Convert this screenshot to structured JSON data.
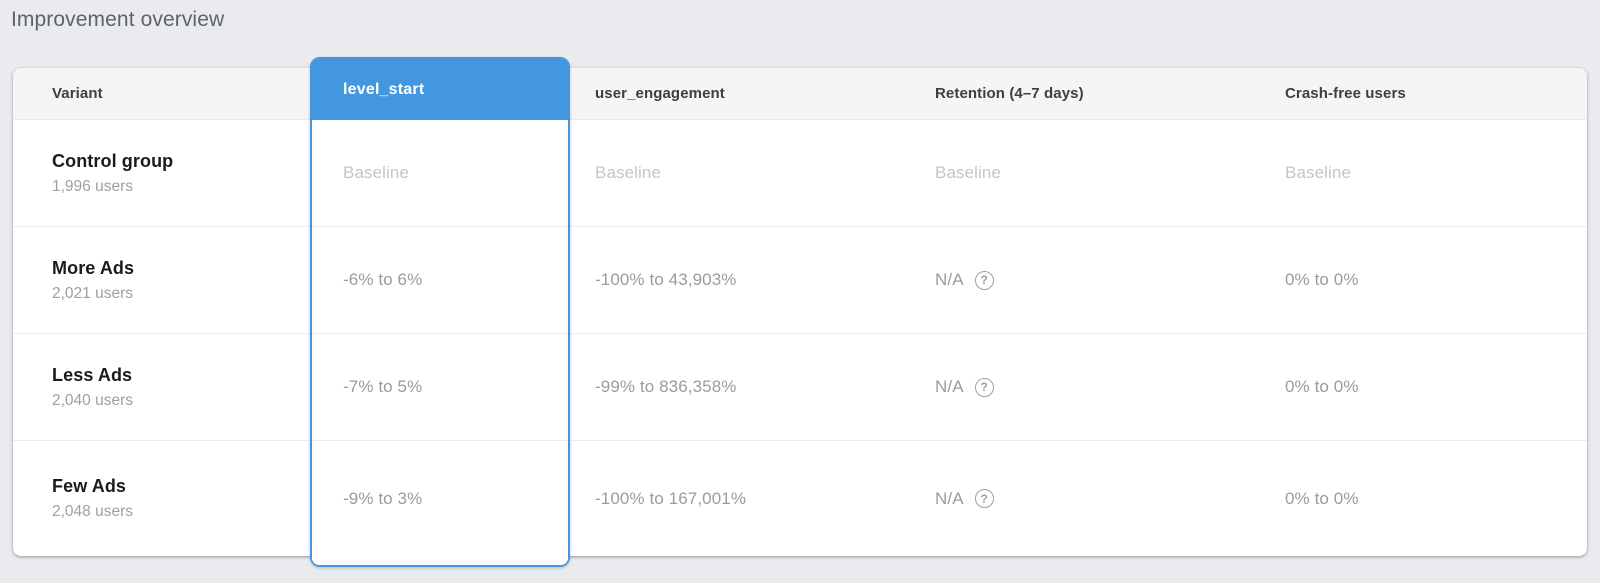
{
  "page": {
    "title": "Improvement overview"
  },
  "colors": {
    "accent_blue": "#4397DF",
    "page_bg": "#E9EBEE",
    "header_bg": "#F5F5F6",
    "baseline_text": "#C2C6CA",
    "value_text": "#989BA0"
  },
  "icons": {
    "help": "?"
  },
  "table": {
    "columns": {
      "variant": "Variant",
      "level_start": "level_start",
      "user_engagement": "user_engagement",
      "retention": "Retention (4–7 days)",
      "crash_free": "Crash-free users"
    },
    "selected_column": "level_start",
    "rows": [
      {
        "variant": "Control group",
        "users": "1,996 users",
        "level_start": "Baseline",
        "user_engagement": "Baseline",
        "retention": "Baseline",
        "crash_free": "Baseline"
      },
      {
        "variant": "More Ads",
        "users": "2,021 users",
        "level_start": "-6% to 6%",
        "user_engagement": "-100% to 43,903%",
        "retention": "N/A",
        "crash_free": "0% to 0%"
      },
      {
        "variant": "Less Ads",
        "users": "2,040 users",
        "level_start": "-7% to 5%",
        "user_engagement": "-99% to 836,358%",
        "retention": "N/A",
        "crash_free": "0% to 0%"
      },
      {
        "variant": "Few Ads",
        "users": "2,048 users",
        "level_start": "-9% to 3%",
        "user_engagement": "-100% to 167,001%",
        "retention": "N/A",
        "crash_free": "0% to 0%"
      }
    ]
  }
}
